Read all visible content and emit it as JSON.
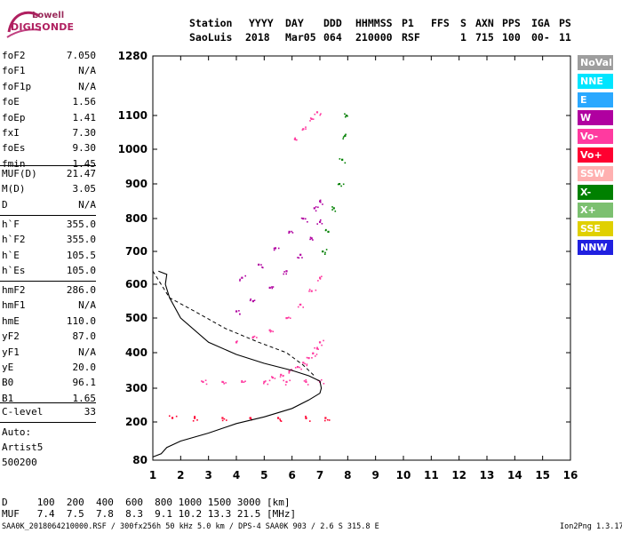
{
  "logo": {
    "top": "Lowell",
    "bottom": "DIGISONDE"
  },
  "header": {
    "labels": [
      "Station",
      "YYYY",
      "DAY",
      "DDD",
      "HHMMSS",
      "P1",
      "FFS",
      "S",
      "AXN",
      "PPS",
      "IGA",
      "PS"
    ],
    "values": [
      "SaoLuis",
      "2018",
      "Mar05",
      "064",
      "210000",
      "RSF",
      "1",
      "715",
      "100",
      "00-",
      "11"
    ]
  },
  "params_group1": [
    {
      "name": "foF2",
      "value": "7.050"
    },
    {
      "name": "foF1",
      "value": "N/A"
    },
    {
      "name": "foF1p",
      "value": "N/A"
    },
    {
      "name": "foE",
      "value": "1.56"
    },
    {
      "name": "foEp",
      "value": "1.41"
    },
    {
      "name": "fxI",
      "value": "7.30"
    },
    {
      "name": "foEs",
      "value": "9.30"
    },
    {
      "name": "fmin",
      "value": "1.45"
    }
  ],
  "params_group2": [
    {
      "name": "MUF(D)",
      "value": "21.47"
    },
    {
      "name": "M(D)",
      "value": "3.05"
    },
    {
      "name": "D",
      "value": "N/A"
    }
  ],
  "params_group3": [
    {
      "name": "h`F",
      "value": "355.0"
    },
    {
      "name": "h`F2",
      "value": "355.0"
    },
    {
      "name": "h`E",
      "value": "105.5"
    },
    {
      "name": "h`Es",
      "value": "105.0"
    }
  ],
  "params_group4": [
    {
      "name": "hmF2",
      "value": "286.0"
    },
    {
      "name": "hmF1",
      "value": "N/A"
    },
    {
      "name": "hmE",
      "value": "110.0"
    },
    {
      "name": "yF2",
      "value": "87.0"
    },
    {
      "name": "yF1",
      "value": "N/A"
    },
    {
      "name": "yE",
      "value": "20.0"
    },
    {
      "name": "B0",
      "value": "96.1"
    },
    {
      "name": "B1",
      "value": "1.65"
    }
  ],
  "c_level": {
    "name": "C-level",
    "value": "33"
  },
  "auto_lines": [
    "Auto:",
    "Artist5",
    "500200"
  ],
  "legend": [
    {
      "label": "NoVal",
      "color": "#9e9e9e"
    },
    {
      "label": "NNE",
      "color": "#00e5ff"
    },
    {
      "label": "E",
      "color": "#2aa8ff"
    },
    {
      "label": "W",
      "color": "#b000a0"
    },
    {
      "label": "Vo-",
      "color": "#ff3aa0"
    },
    {
      "label": "Vo+",
      "color": "#ff0030"
    },
    {
      "label": "SSW",
      "color": "#ffb0b0"
    },
    {
      "label": "X-",
      "color": "#008000"
    },
    {
      "label": "X+",
      "color": "#7cc070"
    },
    {
      "label": "SSE",
      "color": "#e0d000"
    },
    {
      "label": "NNW",
      "color": "#2020e0"
    }
  ],
  "bottom_table": {
    "d_line": "D     100  200  400  600  800 1000 1500 3000 [km]",
    "muf_line": "MUF   7.4  7.5  7.8  8.3  9.1 10.2 13.3 21.5 [MHz]"
  },
  "footer": {
    "left": "SAA0K_2018064210000.RSF / 300fx256h 50 kHz 5.0 km / DPS-4 SAA0K 903 / 2.6 S 315.8 E",
    "right": "Ion2Png 1.3.17"
  },
  "chart_data": {
    "type": "scatter",
    "x_ticks": [
      1,
      2,
      3,
      4,
      5,
      6,
      7,
      8,
      9,
      10,
      11,
      12,
      13,
      14,
      15,
      16
    ],
    "y_ticks": [
      80,
      200,
      300,
      400,
      500,
      600,
      700,
      800,
      900,
      1000,
      1100,
      1280
    ],
    "xlim": [
      1,
      16
    ],
    "ylim": [
      80,
      1280
    ],
    "xlabel": "",
    "ylabel": "",
    "traces": [
      {
        "name": "F2 trace 1",
        "color": "#ff3aa0",
        "x": [
          5.3,
          5.6,
          5.9,
          6.2,
          6.4,
          6.6,
          6.75,
          6.9,
          7.0
        ],
        "y": [
          330,
          338,
          348,
          360,
          372,
          385,
          398,
          412,
          430
        ]
      },
      {
        "name": "F2 trace 2",
        "color": "#ff3aa0",
        "x": [
          4.0,
          4.6,
          5.2,
          5.8,
          6.3,
          6.7,
          7.0
        ],
        "y": [
          430,
          445,
          465,
          500,
          540,
          580,
          620
        ]
      },
      {
        "name": "F2 trace 3",
        "color": "#b000a0",
        "x": [
          4.0,
          4.6,
          5.2,
          5.8,
          6.3,
          6.7,
          7.0
        ],
        "y": [
          520,
          550,
          590,
          640,
          690,
          740,
          790
        ]
      },
      {
        "name": "F2 trace 4",
        "color": "#b000a0",
        "x": [
          4.2,
          4.8,
          5.4,
          5.9,
          6.4,
          6.8,
          7.0
        ],
        "y": [
          620,
          660,
          710,
          760,
          800,
          830,
          850
        ]
      },
      {
        "name": "F2 high",
        "color": "#ff3aa0",
        "x": [
          6.1,
          6.4,
          6.7,
          6.9
        ],
        "y": [
          1030,
          1060,
          1090,
          1110
        ]
      },
      {
        "name": "X trace",
        "color": "#008000",
        "x": [
          7.1,
          7.3,
          7.5,
          7.7,
          7.8,
          7.9,
          7.95
        ],
        "y": [
          700,
          760,
          830,
          900,
          970,
          1040,
          1100
        ]
      },
      {
        "name": "Es 200 km",
        "color": "#ff0030",
        "x": [
          1.7,
          2.5,
          3.5,
          4.5,
          5.5,
          6.5,
          7.2
        ],
        "y": [
          212,
          212,
          212,
          212,
          212,
          212,
          212
        ]
      },
      {
        "name": "E 300 km",
        "color": "#ff3aa0",
        "x": [
          2.8,
          3.5,
          4.2,
          5.0,
          5.8,
          6.5,
          7.0
        ],
        "y": [
          318,
          318,
          318,
          318,
          318,
          318,
          318
        ]
      }
    ],
    "profile": {
      "name": "electron density profile",
      "x": [
        1.0,
        1.3,
        1.5,
        2.0,
        3.0,
        4.0,
        5.0,
        6.0,
        6.6,
        7.0,
        7.05,
        7.0,
        6.6,
        6.0,
        5.0,
        4.0,
        3.0,
        2.0,
        1.6,
        1.45,
        1.5,
        1.2
      ],
      "y": [
        90,
        100,
        120,
        140,
        165,
        195,
        215,
        240,
        265,
        285,
        300,
        320,
        335,
        350,
        370,
        395,
        430,
        500,
        560,
        600,
        630,
        640
      ]
    }
  }
}
